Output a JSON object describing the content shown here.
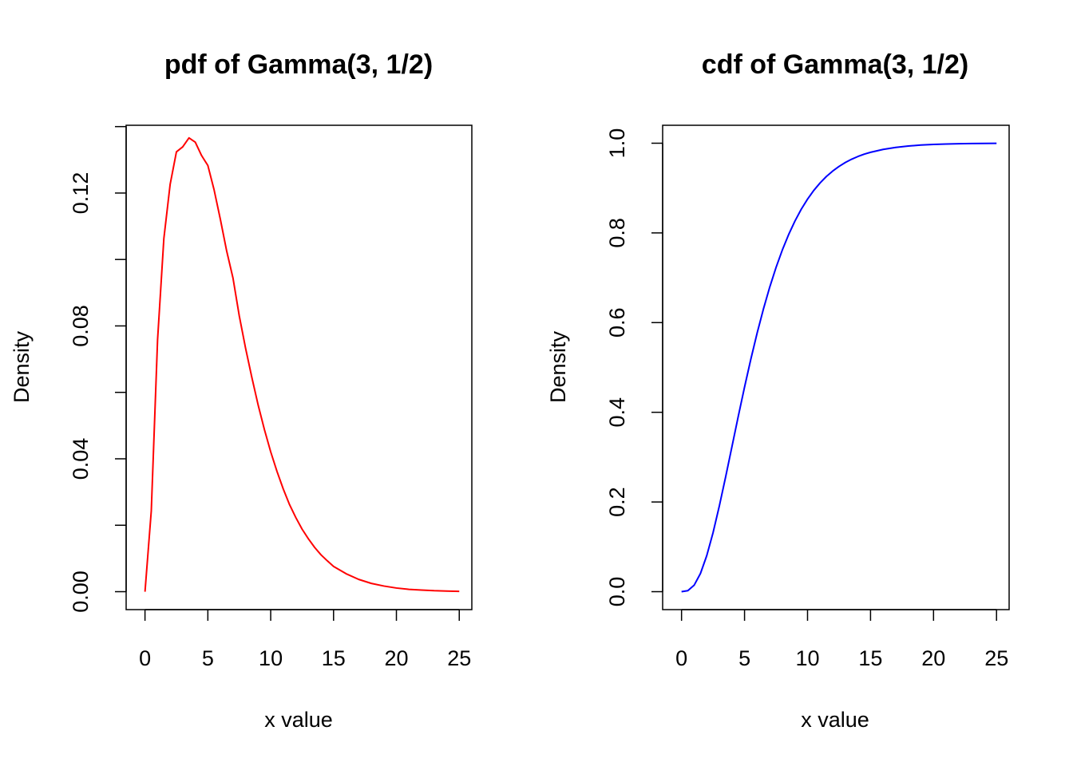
{
  "chart_data": [
    {
      "type": "line",
      "title": "pdf of Gamma(3, 1/2)",
      "xlabel": "x value",
      "ylabel": "Density",
      "xlim": [
        -1.5,
        26
      ],
      "ylim": [
        -0.0054,
        0.1404
      ],
      "x_ticks": [
        0,
        5,
        10,
        15,
        20,
        25
      ],
      "x_tick_labels": [
        "0",
        "5",
        "10",
        "15",
        "20",
        "25"
      ],
      "y_ticks": [
        0.0,
        0.02,
        0.04,
        0.06,
        0.08,
        0.1,
        0.12,
        0.14
      ],
      "y_tick_labels": [
        "0.00",
        "",
        "0.04",
        "",
        "0.08",
        "",
        "0.12",
        ""
      ],
      "grid": false,
      "series": [
        {
          "color": "#ff0000",
          "x": [
            0,
            0.5,
            1,
            1.5,
            2,
            2.5,
            3,
            3.5,
            4,
            4.5,
            5,
            5.5,
            6,
            6.5,
            7,
            7.5,
            8,
            8.5,
            9,
            9.5,
            10,
            10.5,
            11,
            11.5,
            12,
            12.5,
            13,
            13.5,
            14,
            14.5,
            15,
            16,
            17,
            18,
            19,
            20,
            21,
            22,
            23,
            24,
            25
          ],
          "y": [
            0,
            0.0243,
            0.0758,
            0.1063,
            0.1226,
            0.1324,
            0.1339,
            0.1366,
            0.1353,
            0.1313,
            0.1283,
            0.1209,
            0.112,
            0.1025,
            0.0944,
            0.083,
            0.0733,
            0.0645,
            0.0562,
            0.0488,
            0.0421,
            0.0362,
            0.0309,
            0.0262,
            0.0223,
            0.0188,
            0.0159,
            0.0133,
            0.0111,
            0.0093,
            0.0076,
            0.0054,
            0.0037,
            0.0025,
            0.0017,
            0.0011,
            0.0007,
            0.0005,
            0.0003,
            0.0002,
            0.0001
          ]
        }
      ]
    },
    {
      "type": "line",
      "title": "cdf of Gamma(3, 1/2)",
      "xlabel": "x value",
      "ylabel": "Density",
      "xlim": [
        -1.5,
        26
      ],
      "ylim": [
        -0.04,
        1.04
      ],
      "x_ticks": [
        0,
        5,
        10,
        15,
        20,
        25
      ],
      "x_tick_labels": [
        "0",
        "5",
        "10",
        "15",
        "20",
        "25"
      ],
      "y_ticks": [
        0.0,
        0.2,
        0.4,
        0.6,
        0.8,
        1.0
      ],
      "y_tick_labels": [
        "0.0",
        "0.2",
        "0.4",
        "0.6",
        "0.8",
        "1.0"
      ],
      "grid": false,
      "series": [
        {
          "color": "#0000ff",
          "x": [
            0,
            0.5,
            1,
            1.5,
            2,
            2.5,
            3,
            3.5,
            4,
            4.5,
            5,
            5.5,
            6,
            6.5,
            7,
            7.5,
            8,
            8.5,
            9,
            9.5,
            10,
            10.5,
            11,
            11.5,
            12,
            12.5,
            13,
            13.5,
            14,
            14.5,
            15,
            16,
            17,
            18,
            19,
            20,
            21,
            22,
            23,
            24,
            25
          ],
          "y": [
            0,
            0.0022,
            0.0144,
            0.0405,
            0.0803,
            0.1315,
            0.1912,
            0.256,
            0.3233,
            0.3907,
            0.4562,
            0.5185,
            0.5768,
            0.6304,
            0.6792,
            0.7229,
            0.7619,
            0.7963,
            0.8264,
            0.8527,
            0.8753,
            0.8949,
            0.9116,
            0.9259,
            0.938,
            0.9483,
            0.957,
            0.9643,
            0.9704,
            0.9756,
            0.9797,
            0.9862,
            0.9907,
            0.9938,
            0.9959,
            0.9972,
            0.9982,
            0.9988,
            0.9992,
            0.9995,
            0.9997
          ]
        }
      ]
    }
  ]
}
